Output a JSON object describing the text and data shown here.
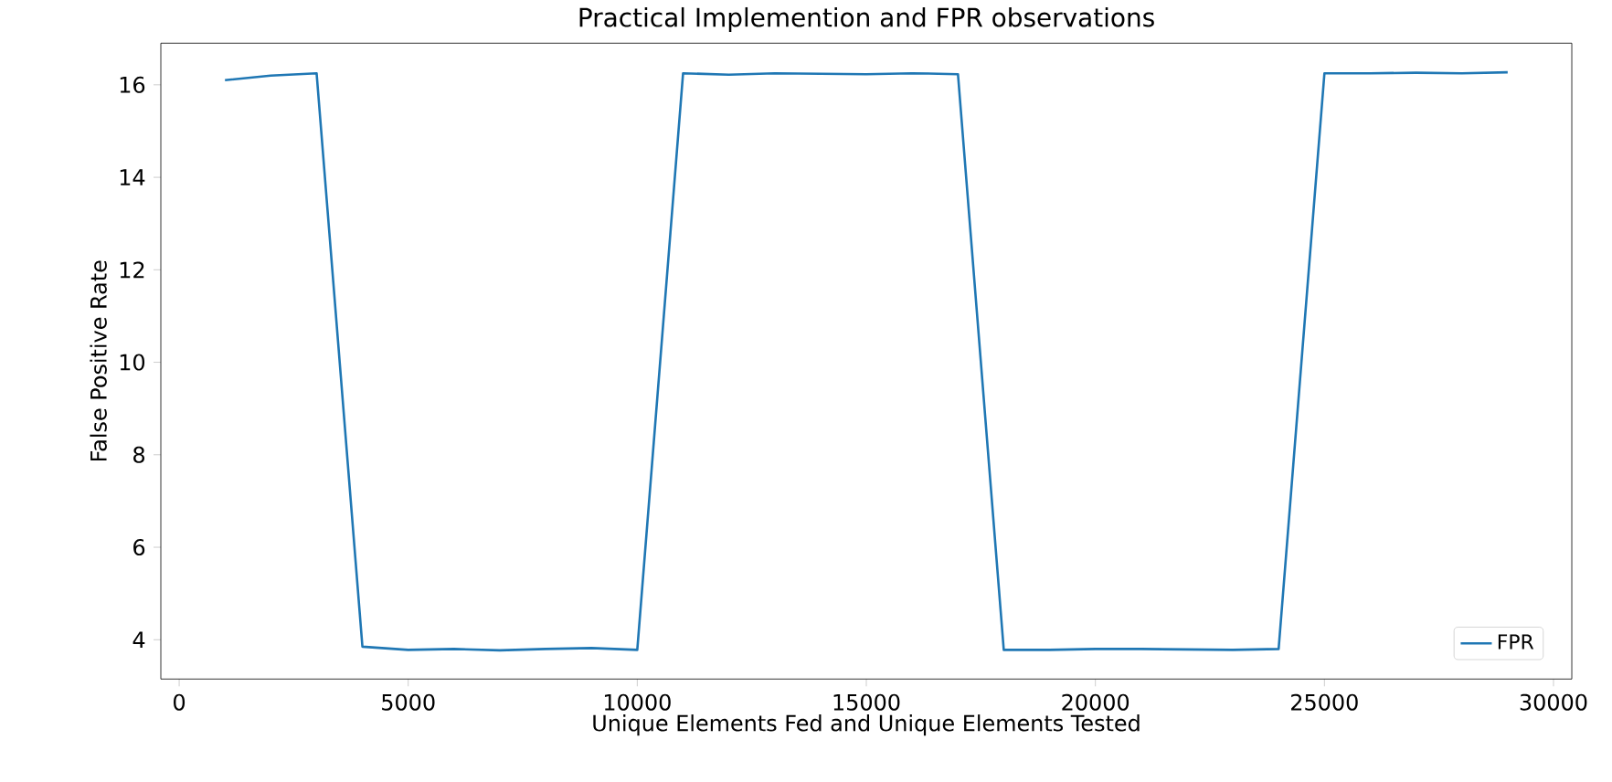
{
  "chart_data": {
    "type": "line",
    "title": "Practical Implemention and FPR observations",
    "xlabel": "Unique Elements Fed and Unique Elements Tested",
    "ylabel": "False Positive Rate",
    "x": [
      1000,
      2000,
      3000,
      4000,
      5000,
      6000,
      7000,
      8000,
      9000,
      10000,
      11000,
      12000,
      13000,
      14000,
      15000,
      16000,
      17000,
      18000,
      19000,
      20000,
      21000,
      22000,
      23000,
      24000,
      25000,
      26000,
      27000,
      28000,
      29000
    ],
    "series": [
      {
        "name": "FPR",
        "color": "#1f77b4",
        "values": [
          16.1,
          16.2,
          16.25,
          3.85,
          3.78,
          3.8,
          3.77,
          3.8,
          3.82,
          3.78,
          16.25,
          16.22,
          16.25,
          16.24,
          16.23,
          16.25,
          16.23,
          3.78,
          3.78,
          3.8,
          3.8,
          3.79,
          3.78,
          3.8,
          16.25,
          16.25,
          16.26,
          16.25,
          16.27
        ]
      }
    ],
    "xlim": [
      -400,
      30400
    ],
    "ylim": [
      3.15,
      16.9
    ],
    "xticks": [
      0,
      5000,
      10000,
      15000,
      20000,
      25000,
      30000
    ],
    "yticks": [
      4,
      6,
      8,
      10,
      12,
      14,
      16
    ],
    "legend": "bottom right",
    "grid": false,
    "marker": "none",
    "line_style": "solid"
  }
}
